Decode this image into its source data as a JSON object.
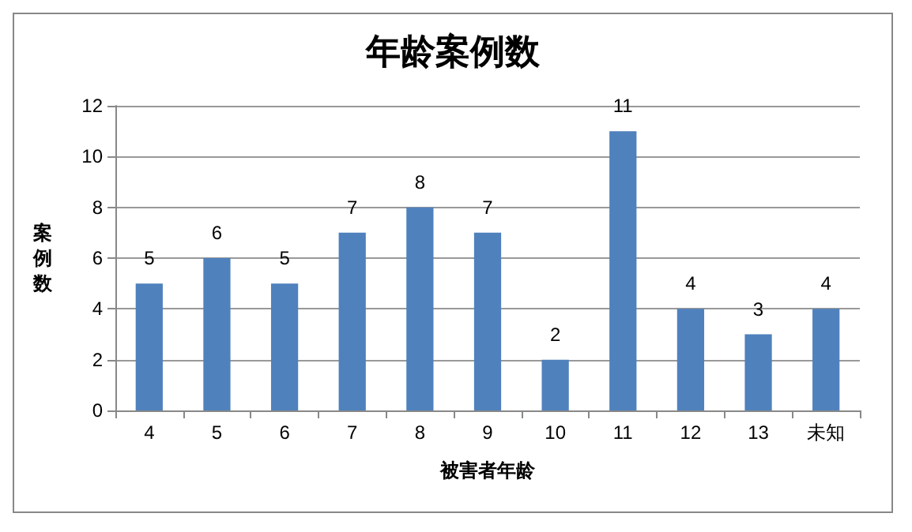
{
  "chart_data": {
    "type": "bar",
    "title": "年龄案例数",
    "xlabel": "被害者年龄",
    "ylabel": "案例数",
    "categories": [
      "4",
      "5",
      "6",
      "7",
      "8",
      "9",
      "10",
      "11",
      "12",
      "13",
      "未知"
    ],
    "values": [
      5,
      6,
      5,
      7,
      8,
      7,
      2,
      11,
      4,
      3,
      4
    ],
    "color": "#4f81bd",
    "ylim": [
      0,
      12
    ],
    "yticks": [
      0,
      2,
      4,
      6,
      8,
      10,
      12
    ],
    "grid": "y",
    "data_labels": true
  }
}
